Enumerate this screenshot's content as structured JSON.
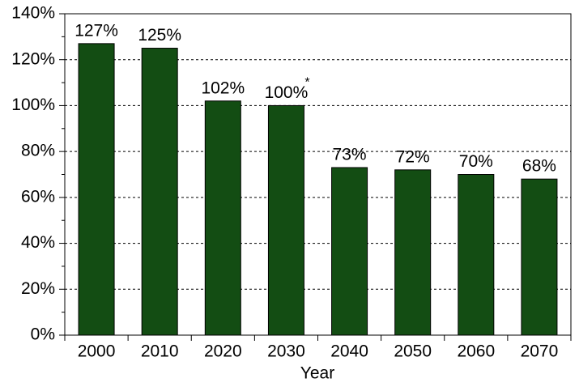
{
  "chart_data": {
    "type": "bar",
    "categories": [
      "2000",
      "2010",
      "2020",
      "2030",
      "2040",
      "2050",
      "2060",
      "2070"
    ],
    "values": [
      127,
      125,
      102,
      100,
      73,
      72,
      70,
      68
    ],
    "value_labels": [
      "127%",
      "125%",
      "102%",
      "100%",
      "73%",
      "72%",
      "70%",
      "68%"
    ],
    "annotations": [
      {
        "category_index": 3,
        "text": "*"
      }
    ],
    "color": "#134d13",
    "x_label": "Year",
    "ylim": [
      0,
      140
    ],
    "yticks": [
      {
        "value": 0,
        "label": "0%"
      },
      {
        "value": 20,
        "label": "20%"
      },
      {
        "value": 40,
        "label": "40%"
      },
      {
        "value": 60,
        "label": "60%"
      },
      {
        "value": 80,
        "label": "80%"
      },
      {
        "value": 100,
        "label": "100%"
      },
      {
        "value": 120,
        "label": "120%"
      },
      {
        "value": 140,
        "label": "140%"
      }
    ],
    "minor_yticks": [
      10,
      30,
      50,
      70,
      90,
      110,
      130
    ],
    "grid": true
  }
}
